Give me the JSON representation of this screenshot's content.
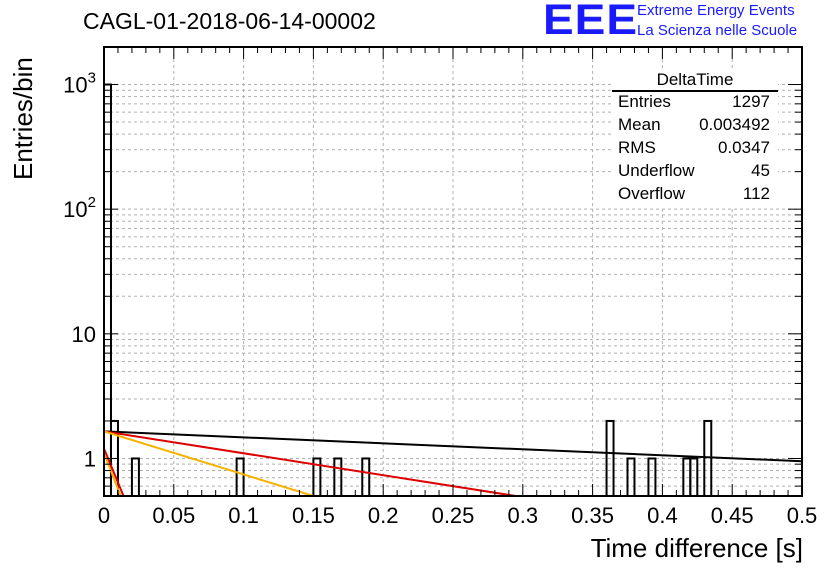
{
  "chart_data": {
    "type": "bar",
    "title": "CAGL-01-2018-06-14-00002",
    "xlabel": "Time difference [s]",
    "ylabel": "Entries/bin",
    "xlim": [
      0,
      0.5
    ],
    "ylim": [
      0.5,
      2000
    ],
    "y_scale": "log",
    "grid": true,
    "x_ticks": [
      "0",
      "0.05",
      "0.1",
      "0.15",
      "0.2",
      "0.25",
      "0.3",
      "0.35",
      "0.4",
      "0.45",
      "0.5"
    ],
    "y_tick_labels": [
      "1",
      "10",
      "10^2",
      "10^3"
    ],
    "bin_width": 0.005,
    "histogram": [
      {
        "x": 0.0,
        "count": 1000
      },
      {
        "x": 0.005,
        "count": 2
      },
      {
        "x": 0.02,
        "count": 1
      },
      {
        "x": 0.095,
        "count": 1
      },
      {
        "x": 0.15,
        "count": 1
      },
      {
        "x": 0.165,
        "count": 1
      },
      {
        "x": 0.185,
        "count": 1
      },
      {
        "x": 0.36,
        "count": 2
      },
      {
        "x": 0.375,
        "count": 1
      },
      {
        "x": 0.39,
        "count": 1
      },
      {
        "x": 0.415,
        "count": 1
      },
      {
        "x": 0.42,
        "count": 1
      },
      {
        "x": 0.43,
        "count": 2
      }
    ],
    "fit_lines": [
      {
        "color": "#000000",
        "points": [
          [
            0.0,
            1.65
          ],
          [
            0.5,
            0.95
          ]
        ]
      },
      {
        "color": "#dd0000",
        "points": [
          [
            0.0,
            1.65
          ],
          [
            0.295,
            0.5
          ]
        ]
      },
      {
        "color": "#f5b300",
        "points": [
          [
            0.0,
            1.65
          ],
          [
            0.15,
            0.5
          ]
        ]
      },
      {
        "color": "#dd0000",
        "points": [
          [
            0.0,
            1.2
          ],
          [
            0.014,
            0.5
          ]
        ]
      },
      {
        "color": "#f5b300",
        "points": [
          [
            0.0,
            1.1
          ],
          [
            0.012,
            0.5
          ]
        ]
      }
    ],
    "stats_box": {
      "title": "DeltaTime",
      "rows": [
        {
          "label": "Entries",
          "value": "1297"
        },
        {
          "label": "Mean",
          "value": "0.003492"
        },
        {
          "label": "RMS",
          "value": "0.0347"
        },
        {
          "label": "Underflow",
          "value": "45"
        },
        {
          "label": "Overflow",
          "value": "112"
        }
      ]
    }
  },
  "logo": {
    "mark": "EEE",
    "line1": "Extreme Energy Events",
    "line2": "La Scienza nelle Scuole"
  },
  "colors": {
    "accent": "#1a1aff",
    "grid": "#b0b0b0",
    "fit_black": "#000000",
    "fit_red": "#dd0000",
    "fit_orange": "#f5b300"
  }
}
